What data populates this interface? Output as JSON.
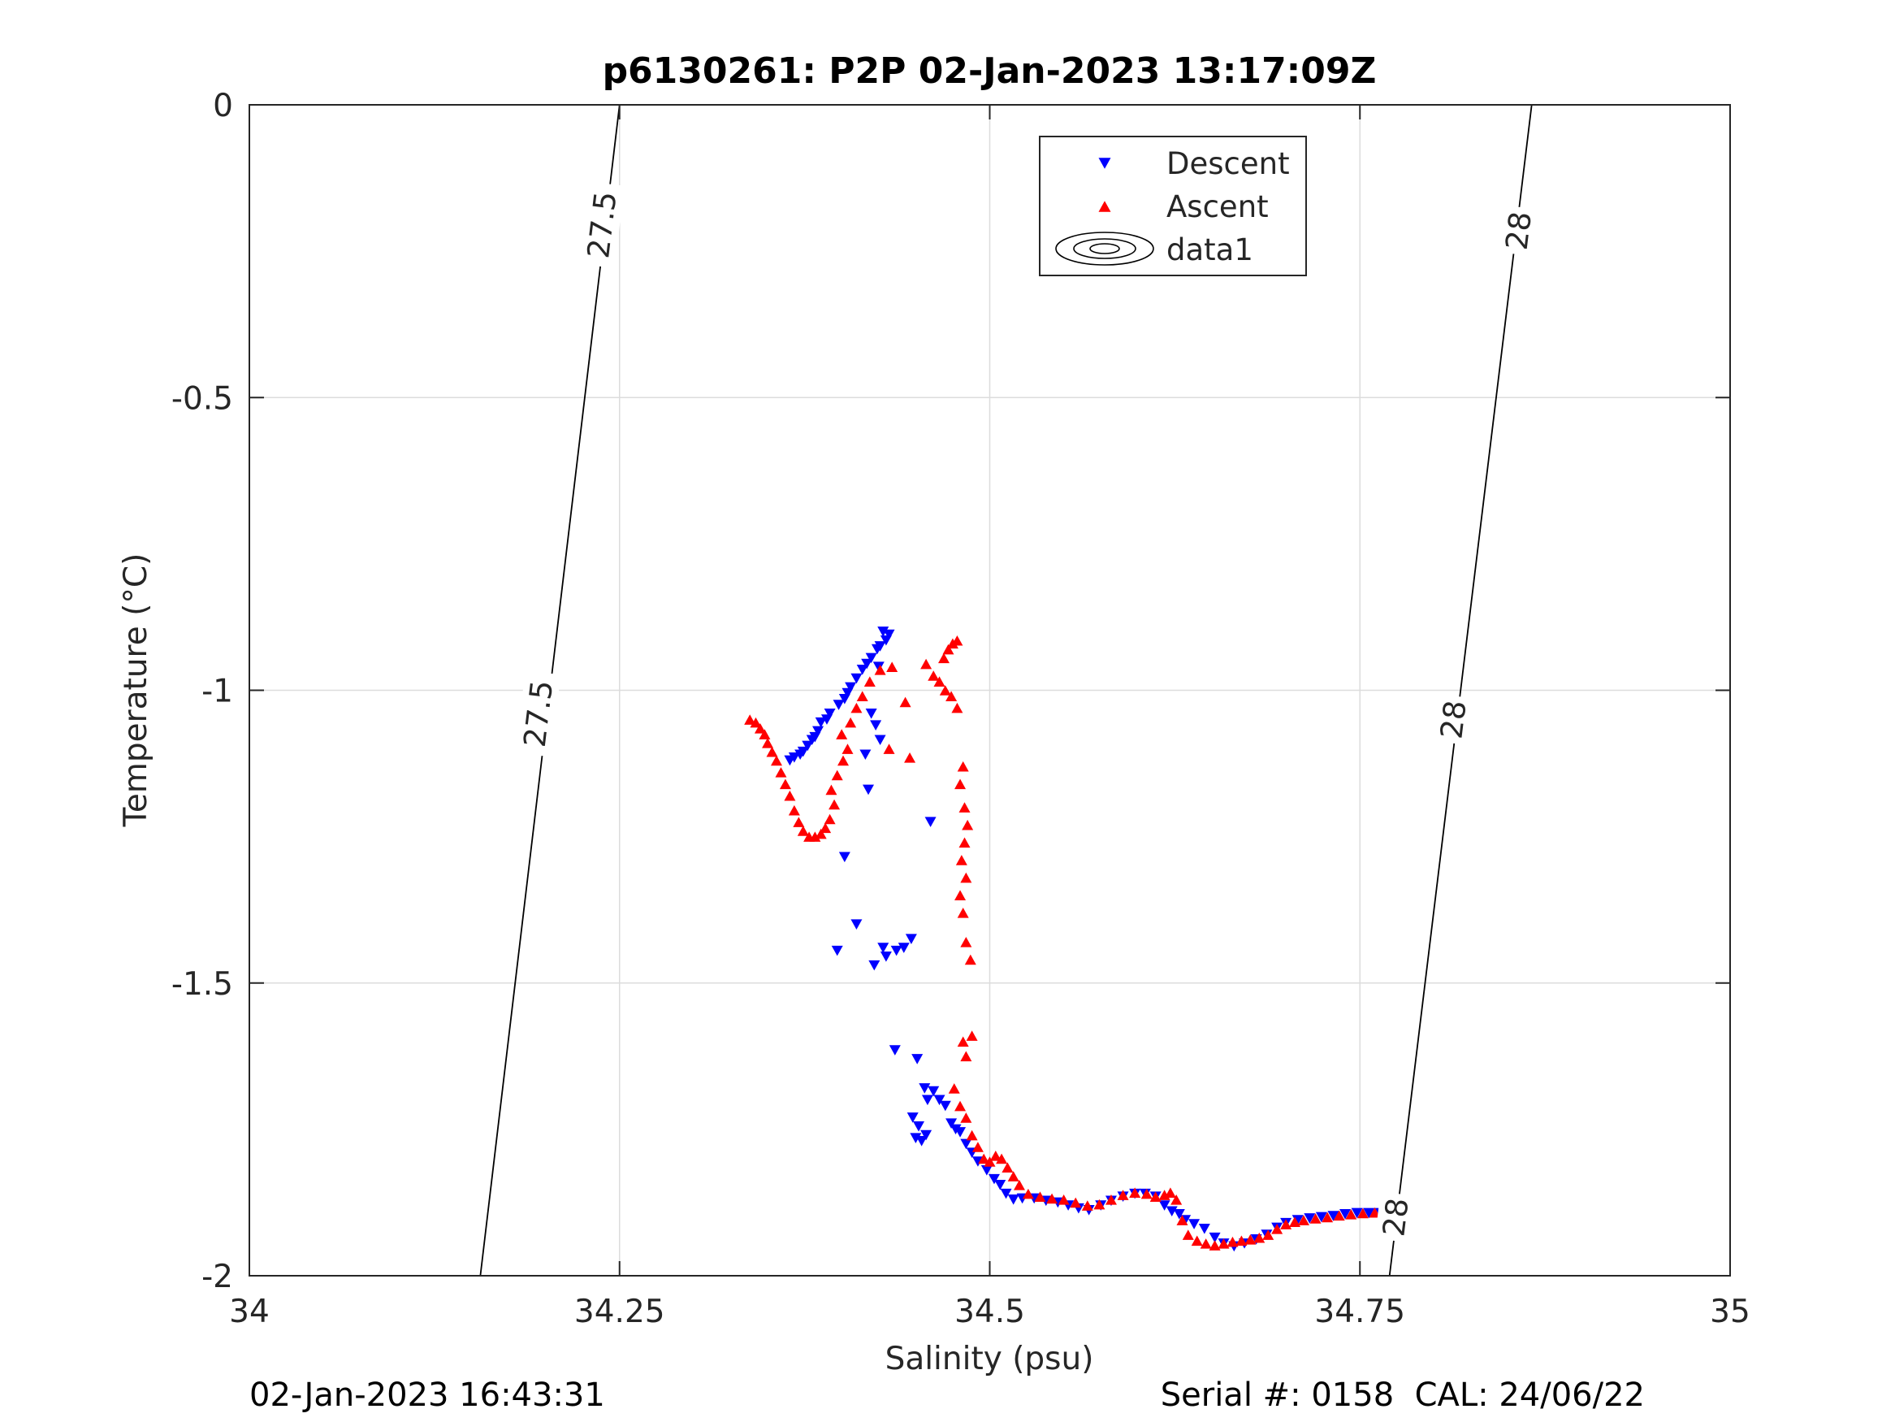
{
  "header": {
    "title": "p6130261: P2P 02-Jan-2023 13:17:09Z"
  },
  "footer": {
    "left_text": "02-Jan-2023 16:43:31",
    "right_text": "Serial #: 0158  CAL: 24/06/22"
  },
  "chart_data": {
    "type": "scatter",
    "title": "p6130261: P2P 02-Jan-2023 13:17:09Z",
    "xlabel": "Salinity (psu)",
    "ylabel": "Temperature (°C)",
    "xlim": [
      34,
      35
    ],
    "ylim": [
      -2,
      0
    ],
    "grid": true,
    "legend_position": "top-center",
    "x_ticks": [
      34,
      34.25,
      34.5,
      34.75,
      35
    ],
    "x_tick_labels": [
      "34",
      "34.25",
      "34.5",
      "34.75",
      "35"
    ],
    "y_ticks": [
      0,
      -0.5,
      -1,
      -1.5,
      -2
    ],
    "y_tick_labels": [
      "0",
      "-0.5",
      "-1",
      "-1.5",
      "-2"
    ],
    "legend": {
      "descent": "Descent",
      "ascent": "Ascent",
      "contour": "data1"
    },
    "colors": {
      "descent": "#0000ff",
      "ascent": "#ff0000",
      "contour": "#000000",
      "grid": "#dcdcdc",
      "axis": "#262626"
    },
    "series": [
      {
        "name": "Descent",
        "marker": "triangle-down",
        "points": [
          [
            34.428,
            -0.9
          ],
          [
            34.432,
            -0.905
          ],
          [
            34.43,
            -0.915
          ],
          [
            34.426,
            -0.925
          ],
          [
            34.424,
            -0.93
          ],
          [
            34.42,
            -0.945
          ],
          [
            34.417,
            -0.955
          ],
          [
            34.414,
            -0.965
          ],
          [
            34.425,
            -0.96
          ],
          [
            34.41,
            -0.98
          ],
          [
            34.406,
            -0.995
          ],
          [
            34.404,
            -1.005
          ],
          [
            34.402,
            -1.015
          ],
          [
            34.398,
            -1.025
          ],
          [
            34.392,
            -1.04
          ],
          [
            34.39,
            -1.05
          ],
          [
            34.386,
            -1.055
          ],
          [
            34.384,
            -1.07
          ],
          [
            34.382,
            -1.08
          ],
          [
            34.38,
            -1.085
          ],
          [
            34.377,
            -1.095
          ],
          [
            34.374,
            -1.105
          ],
          [
            34.372,
            -1.11
          ],
          [
            34.368,
            -1.115
          ],
          [
            34.365,
            -1.12
          ],
          [
            34.42,
            -1.04
          ],
          [
            34.423,
            -1.06
          ],
          [
            34.426,
            -1.085
          ],
          [
            34.416,
            -1.11
          ],
          [
            34.418,
            -1.17
          ],
          [
            34.46,
            -1.225
          ],
          [
            34.402,
            -1.285
          ],
          [
            34.41,
            -1.4
          ],
          [
            34.397,
            -1.445
          ],
          [
            34.422,
            -1.47
          ],
          [
            34.43,
            -1.455
          ],
          [
            34.428,
            -1.44
          ],
          [
            34.437,
            -1.445
          ],
          [
            34.442,
            -1.44
          ],
          [
            34.447,
            -1.425
          ],
          [
            34.436,
            -1.615
          ],
          [
            34.451,
            -1.63
          ],
          [
            34.456,
            -1.68
          ],
          [
            34.462,
            -1.685
          ],
          [
            34.466,
            -1.7
          ],
          [
            34.458,
            -1.7
          ],
          [
            34.47,
            -1.71
          ],
          [
            34.448,
            -1.73
          ],
          [
            34.452,
            -1.745
          ],
          [
            34.45,
            -1.765
          ],
          [
            34.454,
            -1.77
          ],
          [
            34.457,
            -1.76
          ],
          [
            34.474,
            -1.74
          ],
          [
            34.477,
            -1.75
          ],
          [
            34.48,
            -1.755
          ],
          [
            34.484,
            -1.775
          ],
          [
            34.488,
            -1.79
          ],
          [
            34.492,
            -1.805
          ],
          [
            34.498,
            -1.82
          ],
          [
            34.503,
            -1.835
          ],
          [
            34.507,
            -1.845
          ],
          [
            34.511,
            -1.86
          ],
          [
            34.516,
            -1.87
          ],
          [
            34.522,
            -1.868
          ],
          [
            34.53,
            -1.868
          ],
          [
            34.538,
            -1.872
          ],
          [
            34.546,
            -1.875
          ],
          [
            34.553,
            -1.88
          ],
          [
            34.56,
            -1.885
          ],
          [
            34.567,
            -1.888
          ],
          [
            34.575,
            -1.88
          ],
          [
            34.582,
            -1.872
          ],
          [
            34.59,
            -1.865
          ],
          [
            34.598,
            -1.86
          ],
          [
            34.605,
            -1.86
          ],
          [
            34.612,
            -1.865
          ],
          [
            34.618,
            -1.88
          ],
          [
            34.623,
            -1.89
          ],
          [
            34.628,
            -1.895
          ],
          [
            34.632,
            -1.905
          ],
          [
            34.638,
            -1.912
          ],
          [
            34.645,
            -1.92
          ],
          [
            34.652,
            -1.935
          ],
          [
            34.658,
            -1.945
          ],
          [
            34.665,
            -1.95
          ],
          [
            34.672,
            -1.945
          ],
          [
            34.68,
            -1.938
          ],
          [
            34.687,
            -1.93
          ],
          [
            34.694,
            -1.918
          ],
          [
            34.7,
            -1.91
          ],
          [
            34.708,
            -1.905
          ],
          [
            34.716,
            -1.902
          ],
          [
            34.724,
            -1.9
          ],
          [
            34.732,
            -1.898
          ],
          [
            34.74,
            -1.895
          ],
          [
            34.748,
            -1.893
          ],
          [
            34.756,
            -1.893
          ],
          [
            34.764,
            -1.893
          ],
          [
            34.772,
            -1.892
          ],
          [
            34.78,
            -1.892
          ]
        ]
      },
      {
        "name": "Ascent",
        "marker": "triangle-up",
        "points": [
          [
            34.338,
            -1.05
          ],
          [
            34.342,
            -1.055
          ],
          [
            34.345,
            -1.065
          ],
          [
            34.348,
            -1.075
          ],
          [
            34.35,
            -1.09
          ],
          [
            34.353,
            -1.105
          ],
          [
            34.356,
            -1.12
          ],
          [
            34.359,
            -1.14
          ],
          [
            34.362,
            -1.16
          ],
          [
            34.365,
            -1.18
          ],
          [
            34.368,
            -1.205
          ],
          [
            34.371,
            -1.225
          ],
          [
            34.374,
            -1.24
          ],
          [
            34.378,
            -1.25
          ],
          [
            34.382,
            -1.25
          ],
          [
            34.386,
            -1.245
          ],
          [
            34.389,
            -1.235
          ],
          [
            34.392,
            -1.22
          ],
          [
            34.395,
            -1.195
          ],
          [
            34.393,
            -1.17
          ],
          [
            34.397,
            -1.145
          ],
          [
            34.401,
            -1.12
          ],
          [
            34.404,
            -1.1
          ],
          [
            34.4,
            -1.075
          ],
          [
            34.406,
            -1.055
          ],
          [
            34.41,
            -1.03
          ],
          [
            34.414,
            -1.01
          ],
          [
            34.419,
            -0.985
          ],
          [
            34.426,
            -0.965
          ],
          [
            34.434,
            -0.96
          ],
          [
            34.443,
            -1.02
          ],
          [
            34.432,
            -1.1
          ],
          [
            34.446,
            -1.115
          ],
          [
            34.457,
            -0.955
          ],
          [
            34.462,
            -0.975
          ],
          [
            34.466,
            -0.985
          ],
          [
            34.469,
            -0.945
          ],
          [
            34.472,
            -0.93
          ],
          [
            34.475,
            -0.92
          ],
          [
            34.478,
            -0.915
          ],
          [
            34.47,
            -1.0
          ],
          [
            34.474,
            -1.01
          ],
          [
            34.478,
            -1.03
          ],
          [
            34.482,
            -1.13
          ],
          [
            34.48,
            -1.16
          ],
          [
            34.483,
            -1.2
          ],
          [
            34.485,
            -1.23
          ],
          [
            34.483,
            -1.26
          ],
          [
            34.481,
            -1.29
          ],
          [
            34.484,
            -1.32
          ],
          [
            34.48,
            -1.35
          ],
          [
            34.482,
            -1.38
          ],
          [
            34.484,
            -1.43
          ],
          [
            34.487,
            -1.46
          ],
          [
            34.482,
            -1.6
          ],
          [
            34.484,
            -1.625
          ],
          [
            34.488,
            -1.59
          ],
          [
            34.476,
            -1.68
          ],
          [
            34.48,
            -1.71
          ],
          [
            34.484,
            -1.73
          ],
          [
            34.488,
            -1.76
          ],
          [
            34.492,
            -1.78
          ],
          [
            34.496,
            -1.8
          ],
          [
            34.5,
            -1.805
          ],
          [
            34.504,
            -1.795
          ],
          [
            34.508,
            -1.8
          ],
          [
            34.512,
            -1.815
          ],
          [
            34.516,
            -1.83
          ],
          [
            34.52,
            -1.845
          ],
          [
            34.526,
            -1.86
          ],
          [
            34.534,
            -1.865
          ],
          [
            34.542,
            -1.868
          ],
          [
            34.55,
            -1.87
          ],
          [
            34.558,
            -1.875
          ],
          [
            34.566,
            -1.88
          ],
          [
            34.574,
            -1.878
          ],
          [
            34.582,
            -1.87
          ],
          [
            34.59,
            -1.862
          ],
          [
            34.598,
            -1.858
          ],
          [
            34.606,
            -1.86
          ],
          [
            34.612,
            -1.865
          ],
          [
            34.618,
            -1.862
          ],
          [
            34.622,
            -1.858
          ],
          [
            34.626,
            -1.87
          ],
          [
            34.63,
            -1.905
          ],
          [
            34.634,
            -1.93
          ],
          [
            34.64,
            -1.94
          ],
          [
            34.646,
            -1.945
          ],
          [
            34.652,
            -1.948
          ],
          [
            34.658,
            -1.945
          ],
          [
            34.664,
            -1.942
          ],
          [
            34.67,
            -1.94
          ],
          [
            34.676,
            -1.938
          ],
          [
            34.682,
            -1.935
          ],
          [
            34.688,
            -1.93
          ],
          [
            34.694,
            -1.92
          ],
          [
            34.7,
            -1.912
          ],
          [
            34.706,
            -1.908
          ],
          [
            34.712,
            -1.905
          ],
          [
            34.72,
            -1.902
          ],
          [
            34.728,
            -1.9
          ],
          [
            34.736,
            -1.897
          ],
          [
            34.744,
            -1.895
          ],
          [
            34.752,
            -1.893
          ],
          [
            34.76,
            -1.892
          ],
          [
            34.768,
            -1.892
          ],
          [
            34.776,
            -1.891
          ],
          [
            34.782,
            -1.891
          ]
        ]
      }
    ],
    "contours": [
      {
        "level": "27.5",
        "points": [
          [
            34.156,
            -2.0
          ],
          [
            34.25,
            0.0
          ]
        ],
        "labels": [
          {
            "text": "27.5",
            "x": 34.238,
            "y": -0.205
          },
          {
            "text": "27.5",
            "x": 34.195,
            "y": -1.04
          }
        ]
      },
      {
        "level": "28",
        "points": [
          [
            34.77,
            -2.0
          ],
          [
            34.866,
            0.0
          ]
        ],
        "labels": [
          {
            "text": "28",
            "x": 34.857,
            "y": -0.215
          },
          {
            "text": "28",
            "x": 34.813,
            "y": -1.05
          },
          {
            "text": "28",
            "x": 34.774,
            "y": -1.9
          }
        ]
      }
    ]
  }
}
